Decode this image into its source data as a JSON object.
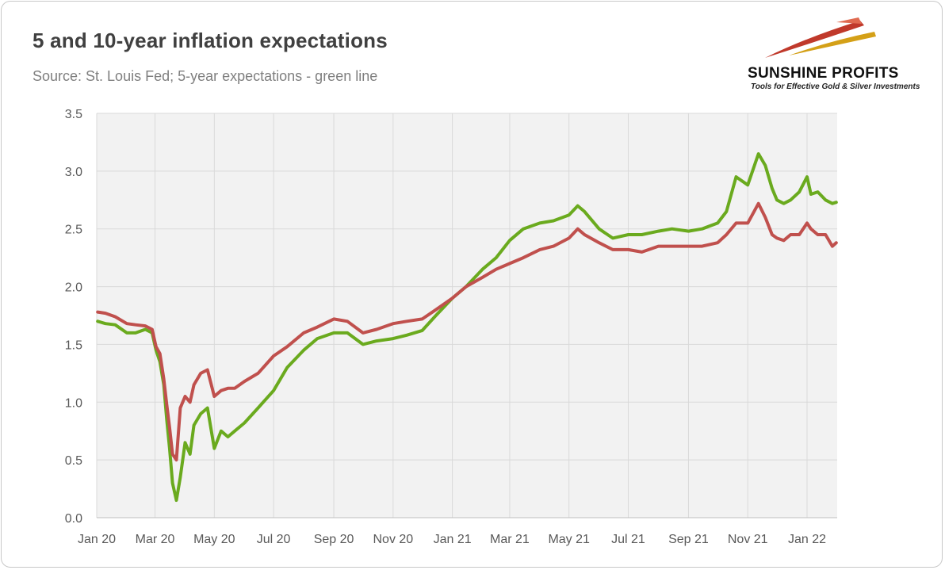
{
  "header": {
    "title": "5 and 10-year inflation expectations",
    "subtitle": "Source: St. Louis Fed; 5-year expectations - green line"
  },
  "logo": {
    "name": "SUNSHINE PROFITS",
    "tagline": "Tools for Effective Gold & Silver Investments",
    "colors": [
      "#c0392b",
      "#d4a017"
    ]
  },
  "chart_data": {
    "type": "line",
    "title": "5 and 10-year inflation expectations",
    "xlabel": "",
    "ylabel": "",
    "x_tick_labels": [
      "Jan 20",
      "Mar 20",
      "May 20",
      "Jul 20",
      "Sep 20",
      "Nov 20",
      "Jan 21",
      "Mar 21",
      "May 21",
      "Jul 21",
      "Sep 21",
      "Nov 21",
      "Jan 22"
    ],
    "y_ticks": [
      0.0,
      0.5,
      1.0,
      1.5,
      2.0,
      2.5,
      3.0,
      3.5
    ],
    "y_tick_labels": [
      "0.0",
      "0.5",
      "1.0",
      "1.5",
      "2.0",
      "2.5",
      "3.0",
      "3.5"
    ],
    "ylim": [
      0,
      3.5
    ],
    "grid": true,
    "background": "#f2f2f2",
    "series": [
      {
        "color": "#6aaa1e",
        "x": [
          "2020-01-02",
          "2020-01-10",
          "2020-01-20",
          "2020-02-01",
          "2020-02-10",
          "2020-02-20",
          "2020-02-27",
          "2020-03-02",
          "2020-03-06",
          "2020-03-10",
          "2020-03-13",
          "2020-03-16",
          "2020-03-19",
          "2020-03-23",
          "2020-03-27",
          "2020-04-01",
          "2020-04-06",
          "2020-04-10",
          "2020-04-17",
          "2020-04-24",
          "2020-05-01",
          "2020-05-08",
          "2020-05-15",
          "2020-05-22",
          "2020-06-01",
          "2020-06-15",
          "2020-07-01",
          "2020-07-15",
          "2020-08-01",
          "2020-08-15",
          "2020-09-01",
          "2020-09-15",
          "2020-10-01",
          "2020-10-15",
          "2020-11-01",
          "2020-11-15",
          "2020-12-01",
          "2020-12-15",
          "2021-01-01",
          "2021-01-15",
          "2021-02-01",
          "2021-02-15",
          "2021-03-01",
          "2021-03-15",
          "2021-04-01",
          "2021-04-15",
          "2021-05-01",
          "2021-05-10",
          "2021-05-17",
          "2021-06-01",
          "2021-06-15",
          "2021-07-01",
          "2021-07-15",
          "2021-08-01",
          "2021-08-15",
          "2021-09-01",
          "2021-09-15",
          "2021-10-01",
          "2021-10-10",
          "2021-10-20",
          "2021-11-01",
          "2021-11-12",
          "2021-11-19",
          "2021-11-26",
          "2021-12-01",
          "2021-12-08",
          "2021-12-15",
          "2021-12-24",
          "2022-01-01",
          "2022-01-05",
          "2022-01-12",
          "2022-01-20",
          "2022-01-27",
          "2022-01-31"
        ],
        "values": [
          1.7,
          1.68,
          1.67,
          1.6,
          1.6,
          1.63,
          1.6,
          1.45,
          1.35,
          1.15,
          0.85,
          0.6,
          0.3,
          0.15,
          0.35,
          0.65,
          0.55,
          0.8,
          0.9,
          0.95,
          0.6,
          0.75,
          0.7,
          0.75,
          0.82,
          0.95,
          1.1,
          1.3,
          1.45,
          1.55,
          1.6,
          1.6,
          1.5,
          1.53,
          1.55,
          1.58,
          1.62,
          1.75,
          1.9,
          2.0,
          2.15,
          2.25,
          2.4,
          2.5,
          2.55,
          2.57,
          2.62,
          2.7,
          2.65,
          2.5,
          2.42,
          2.45,
          2.45,
          2.48,
          2.5,
          2.48,
          2.5,
          2.55,
          2.65,
          2.95,
          2.88,
          3.15,
          3.05,
          2.85,
          2.75,
          2.72,
          2.75,
          2.82,
          2.95,
          2.8,
          2.82,
          2.75,
          2.72,
          2.73
        ]
      },
      {
        "color": "#c0504d",
        "x": [
          "2020-01-02",
          "2020-01-10",
          "2020-01-20",
          "2020-02-01",
          "2020-02-10",
          "2020-02-20",
          "2020-02-27",
          "2020-03-02",
          "2020-03-06",
          "2020-03-10",
          "2020-03-13",
          "2020-03-16",
          "2020-03-19",
          "2020-03-23",
          "2020-03-27",
          "2020-04-01",
          "2020-04-06",
          "2020-04-10",
          "2020-04-17",
          "2020-04-24",
          "2020-05-01",
          "2020-05-08",
          "2020-05-15",
          "2020-05-22",
          "2020-06-01",
          "2020-06-15",
          "2020-07-01",
          "2020-07-15",
          "2020-08-01",
          "2020-08-15",
          "2020-09-01",
          "2020-09-15",
          "2020-10-01",
          "2020-10-15",
          "2020-11-01",
          "2020-11-15",
          "2020-12-01",
          "2020-12-15",
          "2021-01-01",
          "2021-01-15",
          "2021-02-01",
          "2021-02-15",
          "2021-03-01",
          "2021-03-15",
          "2021-04-01",
          "2021-04-15",
          "2021-05-01",
          "2021-05-10",
          "2021-05-17",
          "2021-06-01",
          "2021-06-15",
          "2021-07-01",
          "2021-07-15",
          "2021-08-01",
          "2021-08-15",
          "2021-09-01",
          "2021-09-15",
          "2021-10-01",
          "2021-10-10",
          "2021-10-20",
          "2021-11-01",
          "2021-11-12",
          "2021-11-19",
          "2021-11-26",
          "2021-12-01",
          "2021-12-08",
          "2021-12-15",
          "2021-12-24",
          "2022-01-01",
          "2022-01-05",
          "2022-01-12",
          "2022-01-20",
          "2022-01-27",
          "2022-01-31"
        ],
        "values": [
          1.78,
          1.77,
          1.74,
          1.68,
          1.67,
          1.66,
          1.63,
          1.48,
          1.42,
          1.2,
          0.98,
          0.78,
          0.55,
          0.5,
          0.95,
          1.05,
          1.0,
          1.15,
          1.25,
          1.28,
          1.05,
          1.1,
          1.12,
          1.12,
          1.18,
          1.25,
          1.4,
          1.48,
          1.6,
          1.65,
          1.72,
          1.7,
          1.6,
          1.63,
          1.68,
          1.7,
          1.72,
          1.8,
          1.9,
          2.0,
          2.08,
          2.15,
          2.2,
          2.25,
          2.32,
          2.35,
          2.42,
          2.5,
          2.45,
          2.38,
          2.32,
          2.32,
          2.3,
          2.35,
          2.35,
          2.35,
          2.35,
          2.38,
          2.45,
          2.55,
          2.55,
          2.72,
          2.6,
          2.45,
          2.42,
          2.4,
          2.45,
          2.45,
          2.55,
          2.5,
          2.45,
          2.45,
          2.35,
          2.38
        ]
      }
    ]
  }
}
